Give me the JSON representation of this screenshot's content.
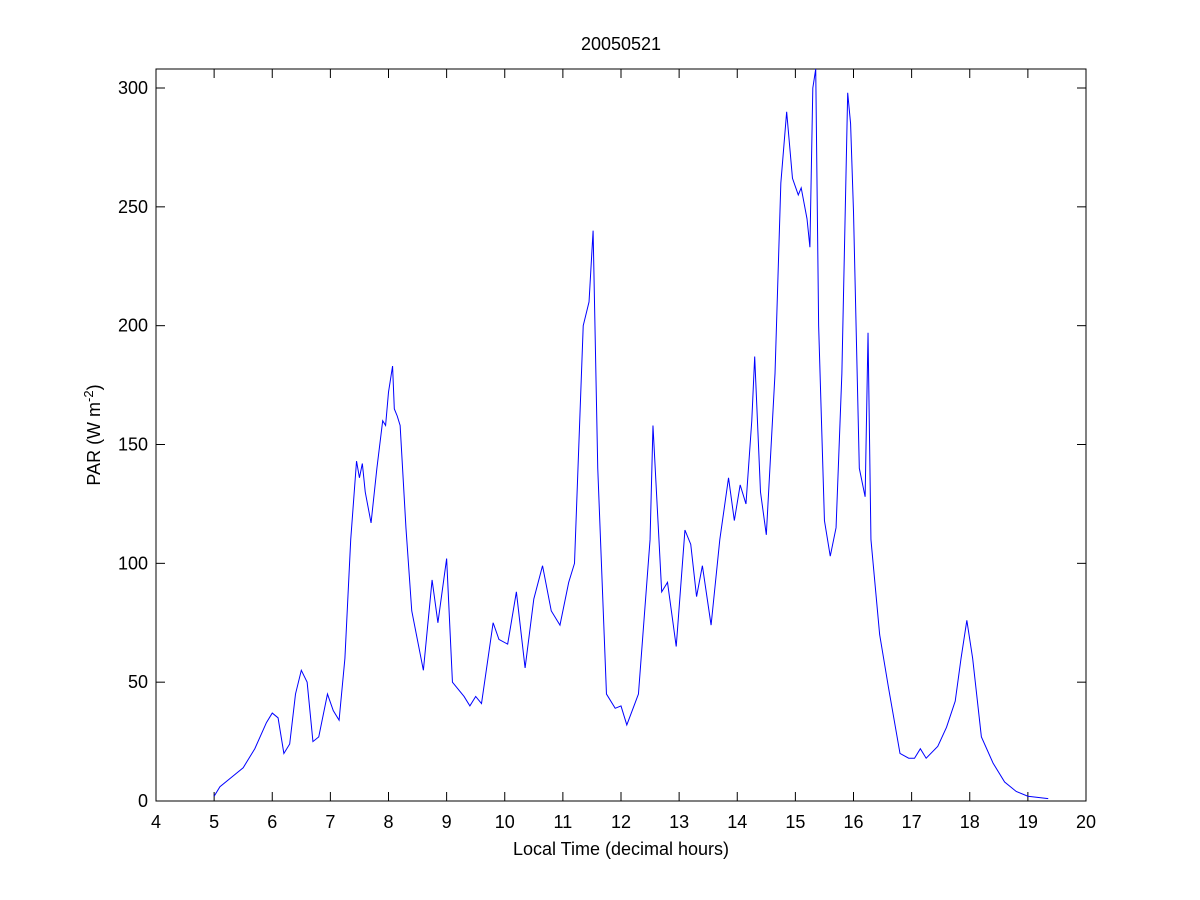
{
  "chart_data": {
    "type": "line",
    "title": "20050521",
    "x_label": "Local Time (decimal hours)",
    "y_label_parts": [
      "PAR (W m",
      "-2",
      ")"
    ],
    "xlim": [
      4,
      20
    ],
    "xticks": [
      4,
      5,
      6,
      7,
      8,
      9,
      10,
      11,
      12,
      13,
      14,
      15,
      16,
      17,
      18,
      19,
      20
    ],
    "ylim": [
      0,
      308
    ],
    "yticks": [
      0,
      50,
      100,
      150,
      200,
      250,
      300
    ],
    "grid": false,
    "series": [
      {
        "color": "#0000ff",
        "x": [
          5.0,
          5.1,
          5.3,
          5.5,
          5.7,
          5.9,
          6.0,
          6.1,
          6.2,
          6.3,
          6.4,
          6.5,
          6.6,
          6.7,
          6.8,
          6.95,
          7.05,
          7.15,
          7.25,
          7.35,
          7.45,
          7.5,
          7.55,
          7.6,
          7.7,
          7.8,
          7.9,
          7.95,
          8.0,
          8.07,
          8.1,
          8.15,
          8.2,
          8.3,
          8.4,
          8.6,
          8.75,
          8.85,
          9.0,
          9.1,
          9.3,
          9.4,
          9.5,
          9.6,
          9.8,
          9.9,
          10.05,
          10.2,
          10.35,
          10.5,
          10.65,
          10.8,
          10.95,
          11.1,
          11.2,
          11.35,
          11.45,
          11.52,
          11.6,
          11.75,
          11.9,
          12.0,
          12.1,
          12.3,
          12.5,
          12.55,
          12.7,
          12.8,
          12.95,
          13.1,
          13.2,
          13.3,
          13.4,
          13.55,
          13.7,
          13.85,
          13.95,
          14.05,
          14.15,
          14.25,
          14.3,
          14.4,
          14.5,
          14.65,
          14.75,
          14.85,
          14.95,
          15.05,
          15.1,
          15.2,
          15.25,
          15.3,
          15.35,
          15.4,
          15.5,
          15.6,
          15.7,
          15.8,
          15.9,
          15.95,
          16.0,
          16.1,
          16.2,
          16.25,
          16.3,
          16.45,
          16.6,
          16.8,
          16.95,
          17.05,
          17.15,
          17.25,
          17.45,
          17.6,
          17.75,
          17.85,
          17.95,
          18.05,
          18.2,
          18.4,
          18.6,
          18.8,
          19.0,
          19.35
        ],
        "values": [
          2,
          6,
          10,
          14,
          22,
          33,
          37,
          35,
          20,
          24,
          45,
          55,
          50,
          25,
          27,
          45,
          38,
          34,
          60,
          110,
          143,
          136,
          142,
          130,
          117,
          140,
          160,
          158,
          172,
          183,
          165,
          162,
          158,
          115,
          80,
          55,
          93,
          75,
          102,
          50,
          44,
          40,
          44,
          41,
          75,
          68,
          66,
          88,
          56,
          85,
          99,
          80,
          74,
          92,
          100,
          200,
          210,
          240,
          140,
          45,
          39,
          40,
          32,
          45,
          110,
          158,
          88,
          92,
          65,
          114,
          108,
          86,
          99,
          74,
          110,
          136,
          118,
          133,
          125,
          160,
          187,
          130,
          112,
          180,
          260,
          290,
          262,
          255,
          258,
          245,
          233,
          300,
          308,
          200,
          118,
          103,
          115,
          180,
          298,
          285,
          248,
          140,
          128,
          197,
          110,
          70,
          48,
          20,
          18,
          18,
          22,
          18,
          23,
          31,
          42,
          60,
          76,
          60,
          27,
          16,
          8,
          4,
          2,
          1
        ]
      }
    ]
  }
}
